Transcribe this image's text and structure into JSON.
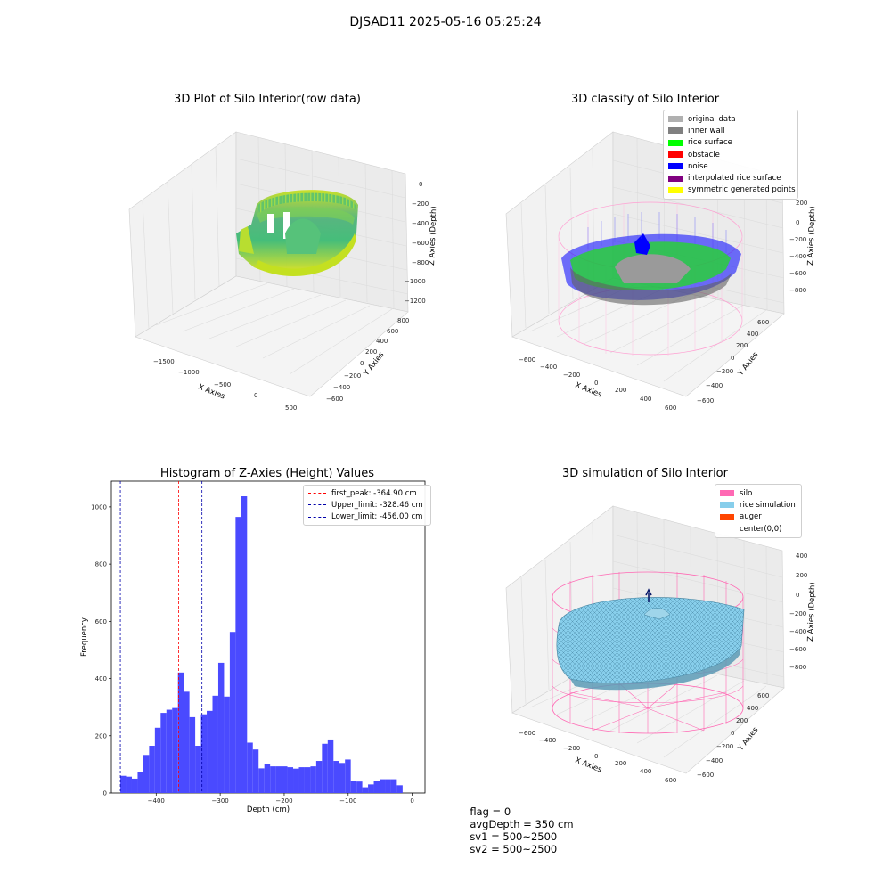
{
  "figure": {
    "suptitle": "DJSAD11 2025-05-16 05:25:24",
    "footer": {
      "flag": "flag = 0",
      "avg_depth": "avgDepth = 350 cm",
      "sv1": "sv1 = 500~2500",
      "sv2": "sv2 = 500~2500"
    }
  },
  "chart_data": [
    {
      "type": "scatter",
      "projection": "3d",
      "title": "3D Plot of Silo Interior(row data)",
      "xlabel": "X Axies",
      "ylabel": "Y Axies",
      "zlabel": "Z Axies (Depth)",
      "x_ticks": [
        "−1500",
        "−1000",
        "−500",
        "0",
        "500"
      ],
      "y_ticks": [
        "−600",
        "−400",
        "−200",
        "0",
        "200",
        "400",
        "600",
        "800"
      ],
      "z_ticks": [
        "0",
        "−200",
        "−400",
        "−600",
        "−800",
        "−1000",
        "−1200"
      ],
      "colormap": "viridis",
      "grid": true
    },
    {
      "type": "scatter",
      "projection": "3d",
      "title": "3D classify of Silo Interior",
      "xlabel": "X Axies",
      "ylabel": "Y Axies",
      "zlabel": "Z Axies (Depth)",
      "x_ticks": [
        "−600",
        "−400",
        "−200",
        "0",
        "200",
        "400",
        "600"
      ],
      "y_ticks": [
        "−600",
        "−400",
        "−200",
        "0",
        "200",
        "400",
        "600"
      ],
      "z_ticks": [
        "200",
        "0",
        "−200",
        "−400",
        "−600",
        "−800"
      ],
      "legend_position": "top-right",
      "grid": true,
      "series": [
        {
          "name": "original data",
          "color": "#b0b0b0"
        },
        {
          "name": "inner wall",
          "color": "#808080"
        },
        {
          "name": "rice surface",
          "color": "#00ff00"
        },
        {
          "name": "obstacle",
          "color": "#ff0000"
        },
        {
          "name": "noise",
          "color": "#0000ff"
        },
        {
          "name": "interpolated rice surface",
          "color": "#800080"
        },
        {
          "name": "symmetric generated points",
          "color": "#ffff00"
        }
      ]
    },
    {
      "type": "bar",
      "title": "Histogram of Z-Axies (Height) Values",
      "xlabel": "Depth (cm)",
      "ylabel": "Frequency",
      "xlim": [
        -470,
        20
      ],
      "ylim": [
        0,
        1090
      ],
      "x_ticks": [
        -400,
        -300,
        -200,
        -100,
        0
      ],
      "y_ticks": [
        0,
        200,
        400,
        600,
        800,
        1000
      ],
      "bar_color": "#4a4aff",
      "bin_width": 9,
      "bin_starts": [
        -456,
        -447,
        -438,
        -429,
        -420,
        -411,
        -402,
        -393,
        -384,
        -375,
        -366,
        -357,
        -348,
        -339,
        -330,
        -321,
        -312,
        -303,
        -294,
        -285,
        -276,
        -267,
        -258,
        -249,
        -240,
        -231,
        -222,
        -213,
        -204,
        -195,
        -186,
        -177,
        -168,
        -159,
        -150,
        -141,
        -132,
        -123,
        -114,
        -105,
        -96,
        -87,
        -78,
        -69,
        -60,
        -51,
        -42,
        -33,
        -24,
        -15
      ],
      "values": [
        60,
        57,
        50,
        73,
        133,
        165,
        228,
        280,
        291,
        297,
        421,
        354,
        265,
        165,
        275,
        287,
        340,
        455,
        337,
        563,
        965,
        1037,
        176,
        152,
        86,
        100,
        93,
        93,
        93,
        90,
        85,
        90,
        90,
        93,
        112,
        172,
        187,
        112,
        105,
        117,
        43,
        40,
        20,
        30,
        42,
        48,
        48,
        48,
        27,
        0
      ],
      "reference_lines": [
        {
          "label": "first_peak: -364.90 cm",
          "x": -364.9,
          "color": "#ff0000"
        },
        {
          "label": "Upper_limit: -328.46 cm",
          "x": -328.46,
          "color": "#0000aa"
        },
        {
          "label": "Lower_limit: -456.00 cm",
          "x": -456.0,
          "color": "#0000aa"
        }
      ],
      "legend_position": "top-right"
    },
    {
      "type": "surface",
      "projection": "3d",
      "title": "3D simulation of Silo Interior",
      "xlabel": "X Axies",
      "ylabel": "Y Axies",
      "zlabel": "Z Axies (Depth)",
      "x_ticks": [
        "−600",
        "−400",
        "−200",
        "0",
        "200",
        "400",
        "600"
      ],
      "y_ticks": [
        "−600",
        "−400",
        "−200",
        "0",
        "200",
        "400",
        "600"
      ],
      "z_ticks": [
        "400",
        "200",
        "0",
        "−200",
        "−400",
        "−600",
        "−800"
      ],
      "legend_position": "top-right",
      "grid": true,
      "series": [
        {
          "name": "silo",
          "color": "#ff69b4"
        },
        {
          "name": "rice simulation",
          "color": "#87ceeb"
        },
        {
          "name": "auger",
          "color": "#ff4500"
        },
        {
          "name": "center(0,0)",
          "color": ""
        }
      ]
    }
  ]
}
